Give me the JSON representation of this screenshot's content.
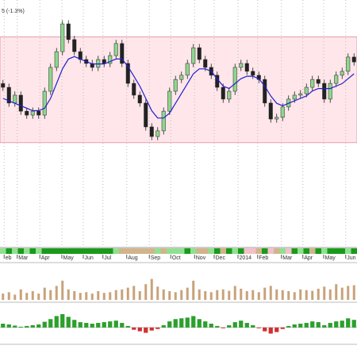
{
  "chart_data": {
    "type": "candlestick",
    "title": "5 (-1.3%)",
    "open": [
      66.0,
      64.5,
      58.1,
      61.3,
      54.8,
      53.2,
      54.8,
      53.2,
      62.9,
      72.6,
      79.0,
      90.3,
      83.9,
      79.0,
      75.8,
      74.2,
      72.6,
      75.8,
      74.2,
      77.4,
      82.3,
      74.2,
      66.1,
      61.3,
      58.1,
      48.4,
      44.5,
      46.8,
      54.8,
      62.9,
      67.7,
      69.4,
      74.2,
      80.6,
      75.8,
      72.6,
      69.4,
      64.5,
      59.7,
      62.9,
      72.6,
      74.2,
      71.0,
      69.4,
      67.7,
      58.1,
      51.6,
      52.3,
      56.5,
      59.7,
      61.3,
      61.9,
      64.5,
      67.7,
      66.1,
      59.7,
      66.1,
      69.4,
      71.0,
      76.8
    ],
    "high": [
      67.5,
      66.0,
      62.8,
      62.8,
      56.3,
      56.3,
      56.3,
      64.4,
      74.1,
      80.5,
      91.8,
      91.8,
      85.4,
      80.5,
      77.3,
      75.7,
      77.3,
      77.3,
      78.9,
      83.8,
      83.8,
      75.7,
      67.6,
      62.8,
      59.6,
      49.9,
      48.3,
      56.3,
      64.4,
      69.2,
      70.9,
      75.7,
      82.1,
      82.1,
      77.3,
      74.1,
      70.9,
      66.0,
      64.4,
      74.1,
      75.7,
      75.7,
      72.5,
      70.9,
      69.2,
      59.6,
      53.8,
      58.0,
      61.2,
      62.8,
      63.4,
      66.0,
      69.2,
      69.2,
      67.6,
      67.6,
      70.9,
      72.5,
      78.3,
      78.3
    ],
    "low": [
      63.0,
      56.6,
      56.6,
      53.3,
      51.7,
      51.7,
      51.7,
      51.7,
      61.4,
      71.1,
      77.5,
      82.4,
      77.5,
      74.3,
      72.7,
      71.1,
      71.1,
      72.7,
      72.7,
      75.9,
      72.7,
      64.6,
      59.8,
      56.6,
      46.9,
      43.0,
      43.0,
      45.3,
      53.3,
      61.4,
      66.2,
      67.9,
      72.7,
      74.3,
      71.1,
      67.9,
      63.0,
      58.2,
      58.2,
      61.4,
      71.1,
      69.5,
      67.9,
      66.2,
      56.6,
      50.1,
      50.1,
      50.8,
      55.0,
      58.2,
      59.8,
      60.4,
      63.0,
      64.6,
      58.2,
      58.2,
      64.6,
      67.9,
      69.5,
      73.3
    ],
    "close": [
      64.5,
      58.1,
      61.3,
      54.8,
      53.2,
      54.8,
      53.2,
      62.9,
      72.6,
      79.0,
      90.3,
      83.9,
      79.0,
      75.8,
      74.2,
      72.6,
      75.8,
      74.2,
      77.4,
      82.3,
      74.2,
      66.1,
      61.3,
      58.1,
      48.4,
      44.5,
      46.8,
      54.8,
      62.9,
      67.7,
      69.4,
      74.2,
      80.6,
      75.8,
      72.6,
      69.4,
      64.5,
      59.7,
      62.9,
      72.6,
      74.2,
      71.0,
      69.4,
      67.7,
      58.1,
      51.6,
      52.3,
      56.5,
      59.7,
      61.3,
      61.9,
      64.5,
      67.7,
      66.1,
      59.7,
      66.1,
      69.4,
      71.0,
      76.8,
      74.8
    ],
    "up_color": "#8fd68f",
    "down_color": "#222222",
    "ylim": [
      0,
      100
    ],
    "xlim": [
      -0.5,
      59.5
    ],
    "xticks": [
      {
        "value": 0.2,
        "label": "eb"
      },
      {
        "value": 2.4,
        "label": "Mar"
      },
      {
        "value": 6.2,
        "label": "Apr"
      },
      {
        "value": 9.9,
        "label": "May"
      },
      {
        "value": 13.5,
        "label": "Jun"
      },
      {
        "value": 16.8,
        "label": "Jul"
      },
      {
        "value": 20.8,
        "label": "Aug"
      },
      {
        "value": 24.6,
        "label": "Sep"
      },
      {
        "value": 28.2,
        "label": "Oct"
      },
      {
        "value": 32.2,
        "label": "Nov"
      },
      {
        "value": 35.5,
        "label": "Dec"
      },
      {
        "value": 39.5,
        "label": "2014"
      },
      {
        "value": 42.8,
        "label": "Feb"
      },
      {
        "value": 46.8,
        "label": "Mar"
      },
      {
        "value": 50.4,
        "label": "Apr"
      },
      {
        "value": 53.9,
        "label": "May"
      },
      {
        "value": 57.6,
        "label": "Jun"
      }
    ],
    "band": [
      42,
      85
    ],
    "band_color": "#ffe6ea",
    "ma": {
      "color": "#1f1fd0",
      "values": [
        60,
        59,
        58,
        57,
        56,
        55,
        55,
        56,
        60,
        66,
        72,
        76,
        77,
        76,
        75,
        74,
        74,
        74,
        75,
        76,
        76,
        73,
        69,
        65,
        60,
        55,
        52,
        52,
        54,
        58,
        62,
        66,
        70,
        72,
        72,
        71,
        68,
        65,
        64,
        66,
        68,
        69,
        69,
        68,
        65,
        61,
        58,
        57,
        58,
        59,
        60,
        61,
        63,
        64,
        64,
        64,
        65,
        66,
        68,
        70
      ]
    },
    "strip_colors": [
      "#90e090",
      "#1a9a1a",
      "#90e090",
      "#1a9a1a",
      "#90e090",
      "#1a9a1a",
      "#90e090",
      "#1a9a1a",
      "#1a9a1a",
      "#1a9a1a",
      "#1a9a1a",
      "#1a9a1a",
      "#1a9a1a",
      "#1a9a1a",
      "#1a9a1a",
      "#1a9a1a",
      "#1a9a1a",
      "#1a9a1a",
      "#1a9a1a",
      "#90e090",
      "#d2b48c",
      "#d2b48c",
      "#d2b48c",
      "#d2b48c",
      "#d2b48c",
      "#d2b48c",
      "#90e090",
      "#d2b48c",
      "#90e090",
      "#90e090",
      "#90e090",
      "#1a9a1a",
      "#90e090",
      "#d2b48c",
      "#d2b48c",
      "#90e090",
      "#1a9a1a",
      "#d2b48c",
      "#1a9a1a",
      "#90e090",
      "#1a9a1a",
      "#f4c0c8",
      "#f4c0c8",
      "#d2b48c",
      "#1a9a1a",
      "#f4c0c8",
      "#d2b48c",
      "#90e090",
      "#f4c0c8",
      "#1a9a1a",
      "#90e090",
      "#1a9a1a",
      "#d2b48c",
      "#1a9a1a",
      "#90e090",
      "#1a9a1a",
      "#1a9a1a",
      "#1a9a1a",
      "#90e090",
      "#1a9a1a"
    ],
    "volume": {
      "color": "#c8a27a",
      "ylim": [
        0,
        100
      ],
      "values": [
        18,
        22,
        15,
        30,
        20,
        25,
        18,
        35,
        28,
        40,
        55,
        30,
        25,
        20,
        22,
        18,
        25,
        20,
        22,
        28,
        30,
        35,
        40,
        25,
        45,
        60,
        38,
        30,
        25,
        22,
        28,
        35,
        55,
        30,
        25,
        22,
        28,
        30,
        26,
        40,
        32,
        25,
        28,
        22,
        35,
        40,
        30,
        28,
        25,
        22,
        30,
        28,
        26,
        32,
        38,
        30,
        45,
        35,
        40,
        42
      ]
    },
    "oscillator": {
      "color": "#2ca02c",
      "ylim": [
        -40,
        60
      ],
      "values": [
        10,
        8,
        5,
        2,
        4,
        6,
        8,
        15,
        22,
        30,
        35,
        28,
        20,
        14,
        12,
        10,
        12,
        14,
        16,
        18,
        12,
        4,
        -6,
        -10,
        -14,
        -8,
        -4,
        6,
        16,
        22,
        24,
        26,
        30,
        22,
        16,
        10,
        4,
        -2,
        6,
        14,
        18,
        12,
        6,
        -2,
        -10,
        -16,
        -12,
        -4,
        4,
        8,
        10,
        12,
        16,
        14,
        6,
        12,
        16,
        18,
        24,
        20
      ]
    }
  }
}
